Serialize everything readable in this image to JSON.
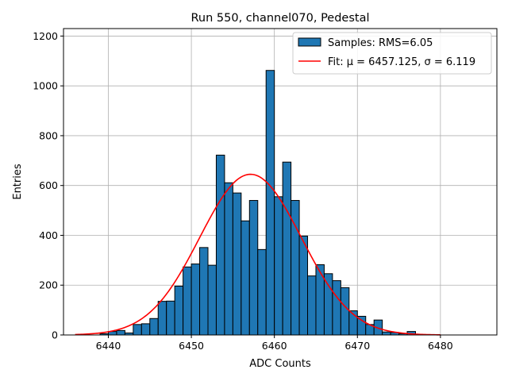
{
  "chart_data": {
    "type": "bar",
    "title": "Run 550, channel070, Pedestal",
    "xlabel": "ADC Counts",
    "ylabel": "Entries",
    "xlim": [
      6434.6,
      6486.8
    ],
    "ylim": [
      0,
      1230
    ],
    "xticks": [
      6440,
      6450,
      6460,
      6470,
      6480
    ],
    "yticks": [
      0,
      200,
      400,
      600,
      800,
      1000,
      1200
    ],
    "grid": true,
    "legend_position": "top-right",
    "bin_edges_start": 6436,
    "bin_width": 1,
    "series": [
      {
        "name": "Samples: RMS=6.05",
        "kind": "histogram",
        "color": "#1f77b4",
        "values": [
          0,
          0,
          0,
          5,
          14,
          18,
          8,
          42,
          45,
          66,
          135,
          136,
          196,
          273,
          285,
          351,
          280,
          722,
          611,
          570,
          458,
          540,
          343,
          1062,
          555,
          694,
          540,
          397,
          237,
          282,
          246,
          218,
          190,
          97,
          75,
          42,
          60,
          12,
          10,
          5,
          14,
          0
        ]
      },
      {
        "name": "Fit",
        "kind": "gaussian",
        "color": "#ff0000",
        "mu": 6457.125,
        "sigma": 6.119,
        "amplitude": 645,
        "x_range": [
          6436,
          6480
        ]
      }
    ],
    "legend": {
      "samples_label": "Samples: RMS=6.05",
      "fit_label": "Fit: μ = 6457.125, σ = 6.119"
    }
  }
}
